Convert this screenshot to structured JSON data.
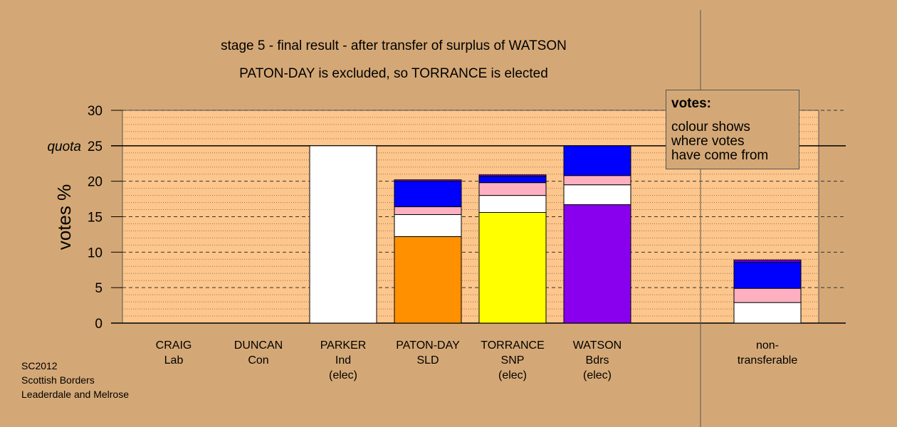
{
  "title": "stage 5 - final result - after transfer of surplus of WATSON",
  "subtitle": "PATON-DAY is excluded, so TORRANCE is elected",
  "footer": [
    "SC2012",
    "Scottish Borders",
    "Leaderdale and Melrose"
  ],
  "legend": {
    "title": "votes:",
    "text": "colour shows\nwhere votes\nhave come from"
  },
  "colors": {
    "background": "#d4a876",
    "plot_area": "#fcc68c",
    "Ind": "#ffffff",
    "SLD": "#ff9000",
    "SNP": "#ffff00",
    "Bdrs": "#8800ee",
    "Con": "#0000ff",
    "Lab": "#ffb0c0"
  },
  "chart_data": {
    "type": "bar",
    "stacked": true,
    "ylabel": "votes %",
    "ylim": [
      0,
      30
    ],
    "yticks": [
      0,
      5,
      10,
      15,
      20,
      25,
      30
    ],
    "quota": {
      "label": "quota",
      "value": 25
    },
    "categories": [
      {
        "name": "CRAIG",
        "party": "Lab",
        "status": ""
      },
      {
        "name": "DUNCAN",
        "party": "Con",
        "status": ""
      },
      {
        "name": "PARKER",
        "party": "Ind",
        "status": "(elec)"
      },
      {
        "name": "PATON-DAY",
        "party": "SLD",
        "status": ""
      },
      {
        "name": "TORRANCE",
        "party": "SNP",
        "status": "(elec)"
      },
      {
        "name": "WATSON",
        "party": "Bdrs",
        "status": "(elec)"
      },
      {
        "name": "non-",
        "party": "transferable",
        "status": ""
      }
    ],
    "bars": [
      [],
      [],
      [
        {
          "color": "#ffffff",
          "value": 25.0
        }
      ],
      [
        {
          "color": "#ff9000",
          "value": 12.2
        },
        {
          "color": "#ffffff",
          "value": 3.1
        },
        {
          "color": "#ffb0c0",
          "value": 1.1
        },
        {
          "color": "#0000ff",
          "value": 3.6
        },
        {
          "color": "#8800ee",
          "value": 0.2
        }
      ],
      [
        {
          "color": "#ffff00",
          "value": 15.6
        },
        {
          "color": "#ffffff",
          "value": 2.4
        },
        {
          "color": "#ffb0c0",
          "value": 1.8
        },
        {
          "color": "#0000ff",
          "value": 0.9
        },
        {
          "color": "#8800ee",
          "value": 0.2
        }
      ],
      [
        {
          "color": "#8800ee",
          "value": 16.7
        },
        {
          "color": "#ffffff",
          "value": 2.8
        },
        {
          "color": "#ffb0c0",
          "value": 1.3
        },
        {
          "color": "#0000ff",
          "value": 4.2
        }
      ],
      [
        {
          "color": "#ffffff",
          "value": 2.9
        },
        {
          "color": "#ffb0c0",
          "value": 2.0
        },
        {
          "color": "#0000ff",
          "value": 3.7
        },
        {
          "color": "#8800ee",
          "value": 0.3
        }
      ]
    ]
  }
}
